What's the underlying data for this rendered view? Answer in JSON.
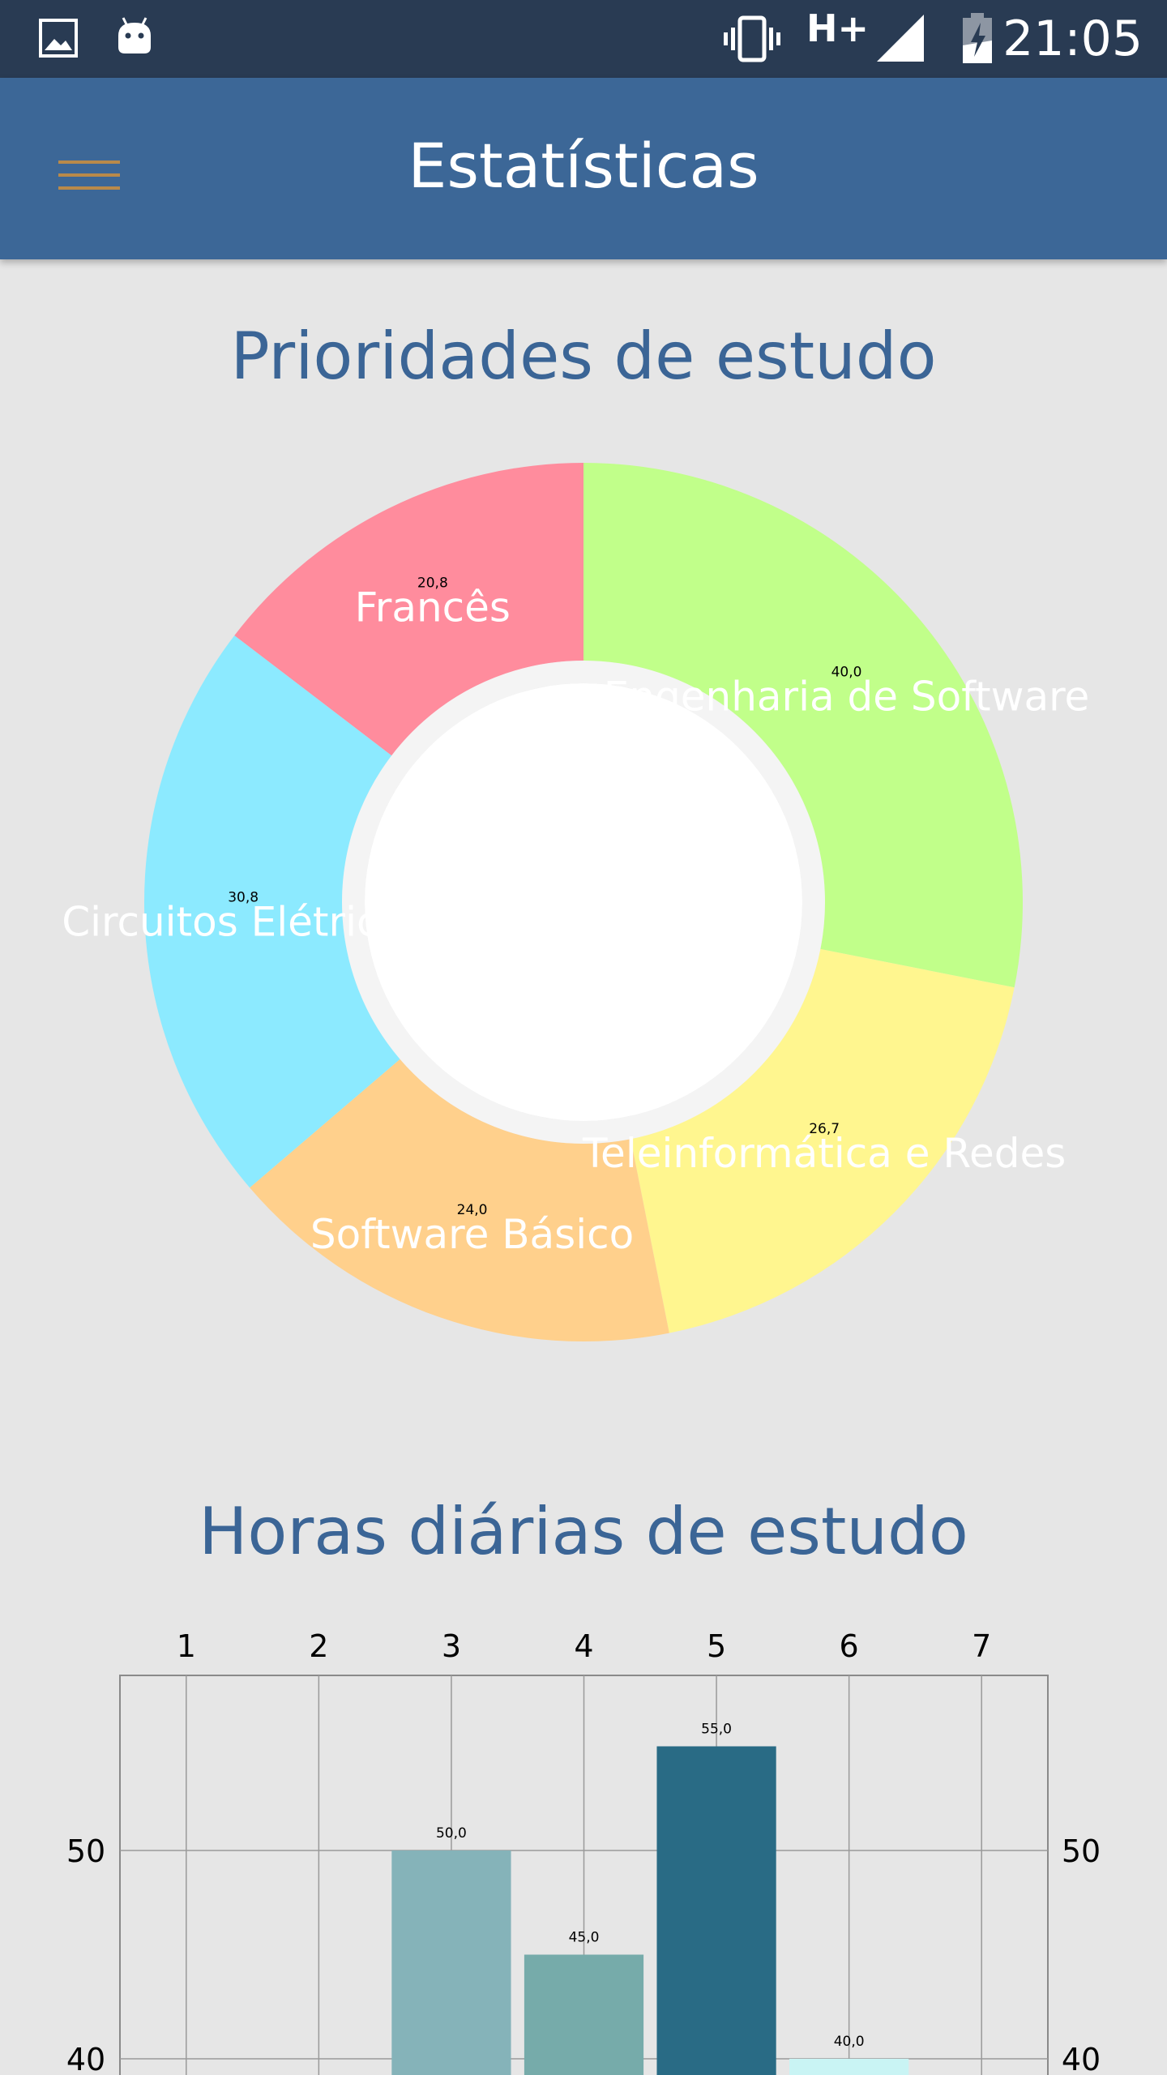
{
  "status_bar": {
    "time": "21:05",
    "network": "H+",
    "icons": [
      "image-icon",
      "android-icon",
      "vibrate-icon",
      "signal-icon",
      "battery-charging-icon"
    ]
  },
  "app_bar": {
    "title": "Estatísticas",
    "menu_icon": "hamburger-menu-icon"
  },
  "pie_section": {
    "title": "Prioridades de estudo"
  },
  "bar_section": {
    "title": "Horas diárias de estudo"
  },
  "chart_data": [
    {
      "type": "pie",
      "variant": "donut",
      "title": "Prioridades de estudo",
      "slices": [
        {
          "label": "Engenharia de Software",
          "value": 40.0,
          "value_label": "40,0",
          "color": "#c1ff8a"
        },
        {
          "label": "Teleinformática e Redes",
          "value": 26.7,
          "value_label": "26,7",
          "color": "#fff68f"
        },
        {
          "label": "Software Básico",
          "value": 24.0,
          "value_label": "24,0",
          "color": "#ffd08c"
        },
        {
          "label": "Circuitos Elétricos",
          "value": 30.8,
          "value_label": "30,8",
          "color": "#8ceaff"
        },
        {
          "label": "Francês",
          "value": 20.8,
          "value_label": "20,8",
          "color": "#ff8c9d"
        }
      ]
    },
    {
      "type": "bar",
      "title": "Horas diárias de estudo",
      "categories": [
        "1",
        "2",
        "3",
        "4",
        "5",
        "6",
        "7"
      ],
      "values": [
        null,
        null,
        50.0,
        45.0,
        55.0,
        40.0,
        null
      ],
      "value_labels": [
        "",
        "",
        "50,0",
        "45,0",
        "55,0",
        "40,0",
        ""
      ],
      "colors": [
        "#85b3b9",
        "#85b3b9",
        "#85b3b9",
        "#76abaa",
        "#296b85",
        "#c9f4f4",
        "#85b3b9"
      ],
      "yticks": [
        50,
        40
      ],
      "ylim": [
        38,
        58
      ],
      "grid": true,
      "x_axis_position": "top",
      "y_axis_position": "both"
    }
  ]
}
